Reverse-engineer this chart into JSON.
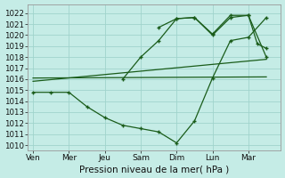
{
  "bg_color": "#c5ece6",
  "grid_color": "#a0d4cc",
  "line_color": "#1a5c1a",
  "xlabel": "Pression niveau de la mer( hPa )",
  "ylim": [
    1009.5,
    1022.8
  ],
  "yticks": [
    1010,
    1011,
    1012,
    1013,
    1014,
    1015,
    1016,
    1017,
    1018,
    1019,
    1020,
    1021,
    1022
  ],
  "day_labels": [
    "Ven",
    "Mer",
    "Jeu",
    "Sam",
    "Dim",
    "Lun",
    "Mar"
  ],
  "day_positions": [
    0,
    2,
    4,
    6,
    8,
    10,
    12
  ],
  "xlim": [
    -0.3,
    13.8
  ],
  "line1_x": [
    0,
    1,
    2,
    3,
    4,
    5,
    6,
    7,
    8,
    9,
    10,
    11,
    12,
    13
  ],
  "line1_y": [
    1014.8,
    1014.8,
    1014.8,
    1013.5,
    1012.5,
    1011.8,
    1011.5,
    1011.2,
    1010.2,
    1012.2,
    1016.1,
    1019.5,
    1019.8,
    1021.6
  ],
  "line2_x": [
    0,
    13
  ],
  "line2_y": [
    1015.8,
    1017.8
  ],
  "line3_x": [
    0,
    13
  ],
  "line3_y": [
    1016.1,
    1016.2
  ],
  "line4_x": [
    5,
    6,
    7,
    8,
    9,
    10,
    11,
    12,
    13
  ],
  "line4_y": [
    1016.0,
    1018.0,
    1019.5,
    1021.5,
    1021.6,
    1020.1,
    1021.8,
    1021.8,
    1018.0
  ],
  "line5_x": [
    7,
    8,
    9,
    10,
    11,
    12,
    12.5,
    13
  ],
  "line5_y": [
    1020.7,
    1021.5,
    1021.6,
    1020.0,
    1021.6,
    1021.8,
    1019.2,
    1018.8
  ]
}
